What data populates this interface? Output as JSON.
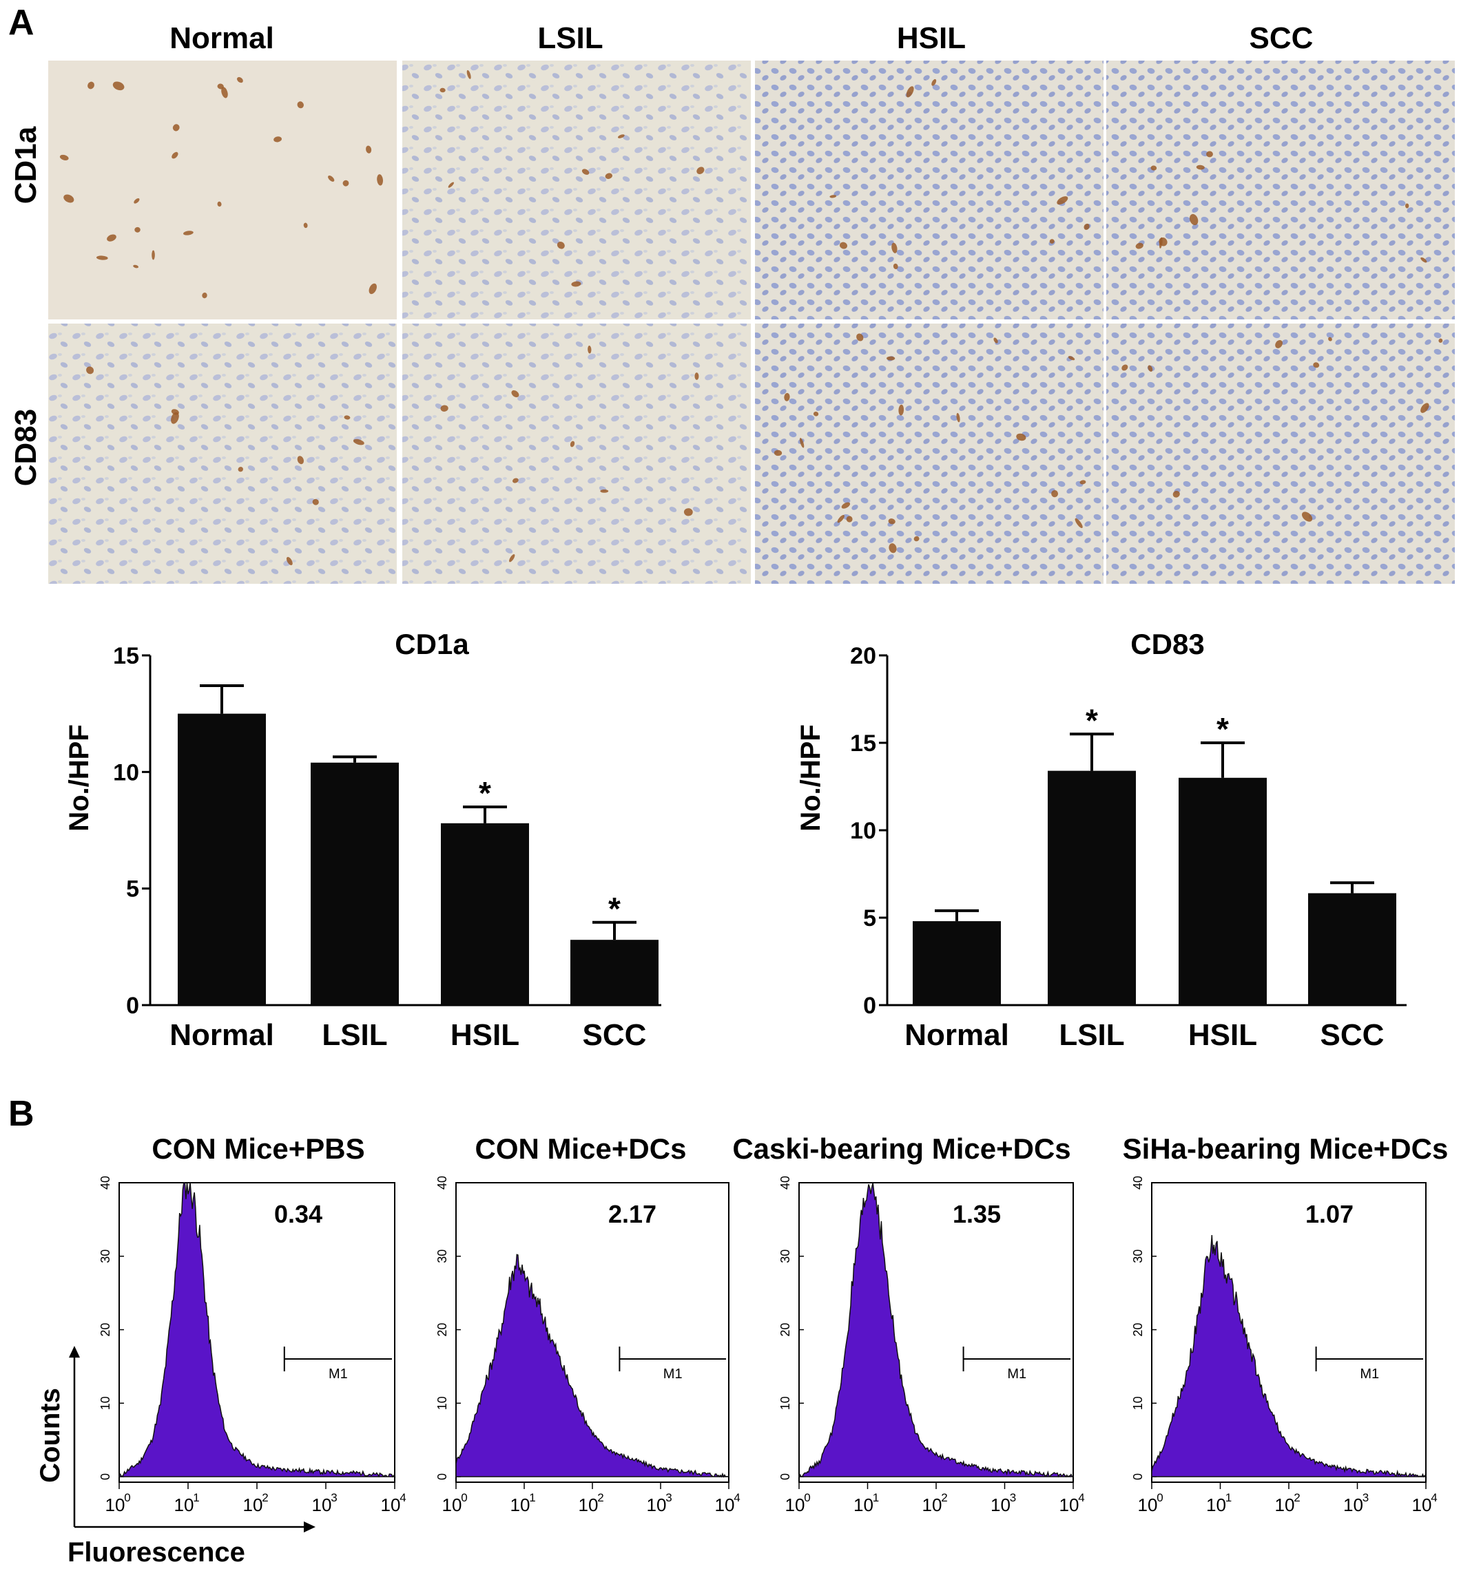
{
  "panel_a": {
    "letter": "A",
    "columns": [
      "Normal",
      "LSIL",
      "HSIL",
      "SCC"
    ],
    "rows": [
      "CD1a",
      "CD83"
    ]
  },
  "panel_b": {
    "letter": "B",
    "axis_y": "Counts",
    "axis_x": "Fluorescence"
  },
  "colors": {
    "bar_fill": "#0a0a0a",
    "histogram_fill": "#5a14c8",
    "tissue_background": "#e7e3d7",
    "nuclei": "#8c9bd0",
    "stain": "#9a5a28"
  },
  "chart_data": [
    {
      "type": "bar",
      "title": "CD1a",
      "ylabel": "No./HPF",
      "categories": [
        "Normal",
        "LSIL",
        "HSIL",
        "SCC"
      ],
      "values": [
        12.5,
        10.4,
        7.8,
        2.8
      ],
      "errors": [
        1.2,
        0.25,
        0.7,
        0.75
      ],
      "significant": [
        "",
        "",
        "*",
        "*"
      ],
      "ylim": [
        0,
        15
      ],
      "yticks": [
        "0",
        "5",
        "10",
        "15"
      ],
      "ytick_values": [
        0,
        5,
        10,
        15
      ]
    },
    {
      "type": "bar",
      "title": "CD83",
      "ylabel": "No./HPF",
      "categories": [
        "Normal",
        "LSIL",
        "HSIL",
        "SCC"
      ],
      "values": [
        4.8,
        13.4,
        13.0,
        6.4
      ],
      "errors": [
        0.6,
        2.1,
        2.0,
        0.6
      ],
      "significant": [
        "",
        "*",
        "*",
        ""
      ],
      "ylim": [
        0,
        20
      ],
      "yticks": [
        "0",
        "5",
        "10",
        "15",
        "20"
      ],
      "ytick_values": [
        0,
        5,
        10,
        15,
        20
      ]
    },
    {
      "type": "area",
      "title": "CON Mice+PBS",
      "value_label": "0.34",
      "marker_label": "M1",
      "x_scale": "log",
      "xlim": [
        1,
        10000
      ],
      "ylim": [
        0,
        40
      ],
      "yticks": [
        "0",
        "10",
        "20",
        "30",
        "40"
      ],
      "peak_x": 10,
      "peak_y": 40,
      "x": [
        1,
        2,
        3,
        4,
        5,
        6,
        7,
        8,
        9,
        10,
        12,
        15,
        18,
        22,
        28,
        35,
        45,
        60,
        80,
        100,
        200,
        500,
        1000,
        3000,
        10000
      ],
      "y": [
        0,
        2,
        5,
        10,
        17,
        24,
        31,
        37,
        40,
        40,
        38,
        32,
        24,
        16,
        10,
        6,
        4,
        3,
        2,
        1.5,
        1,
        0.8,
        0.6,
        0.5,
        0
      ]
    },
    {
      "type": "area",
      "title": "CON Mice+DCs",
      "value_label": "2.17",
      "marker_label": "M1",
      "x_scale": "log",
      "xlim": [
        1,
        10000
      ],
      "ylim": [
        0,
        40
      ],
      "yticks": [
        "0",
        "10",
        "20",
        "30",
        "40"
      ],
      "peak_x": 8,
      "peak_y": 30,
      "x": [
        1,
        1.5,
        2,
        3,
        4,
        5,
        6,
        8,
        10,
        13,
        17,
        22,
        30,
        40,
        55,
        75,
        100,
        150,
        250,
        500,
        1000,
        3000,
        10000
      ],
      "y": [
        2,
        5,
        9,
        14,
        18,
        22,
        26,
        30,
        27,
        25,
        23,
        20,
        17,
        14,
        11,
        8,
        6,
        4,
        3,
        2,
        1,
        0.6,
        0
      ]
    },
    {
      "type": "area",
      "title": "Caski-bearing Mice+DCs",
      "value_label": "1.35",
      "marker_label": "M1",
      "x_scale": "log",
      "xlim": [
        1,
        10000
      ],
      "ylim": [
        0,
        40
      ],
      "yticks": [
        "0",
        "10",
        "20",
        "30",
        "40"
      ],
      "peak_x": 12,
      "peak_y": 40,
      "x": [
        1,
        2,
        3,
        4,
        5,
        6,
        8,
        10,
        12,
        14,
        17,
        20,
        25,
        30,
        40,
        50,
        70,
        100,
        200,
        500,
        1000,
        3000,
        10000
      ],
      "y": [
        0,
        2,
        6,
        12,
        19,
        26,
        34,
        39,
        40,
        37,
        31,
        25,
        19,
        14,
        9,
        6,
        4,
        3,
        2,
        1,
        0.7,
        0.5,
        0
      ]
    },
    {
      "type": "area",
      "title": "SiHa-bearing Mice+DCs",
      "value_label": "1.07",
      "marker_label": "M1",
      "x_scale": "log",
      "xlim": [
        1,
        10000
      ],
      "ylim": [
        0,
        40
      ],
      "yticks": [
        "0",
        "10",
        "20",
        "30",
        "40"
      ],
      "peak_x": 8,
      "peak_y": 32,
      "x": [
        1,
        1.5,
        2,
        3,
        4,
        5,
        6,
        8,
        10,
        13,
        17,
        22,
        30,
        40,
        55,
        75,
        100,
        150,
        250,
        500,
        1000,
        3000,
        10000
      ],
      "y": [
        1,
        4,
        8,
        13,
        18,
        23,
        28,
        32,
        30,
        27,
        24,
        20,
        16,
        12,
        9,
        6,
        4,
        3,
        2,
        1.2,
        0.8,
        0.5,
        0
      ]
    }
  ]
}
